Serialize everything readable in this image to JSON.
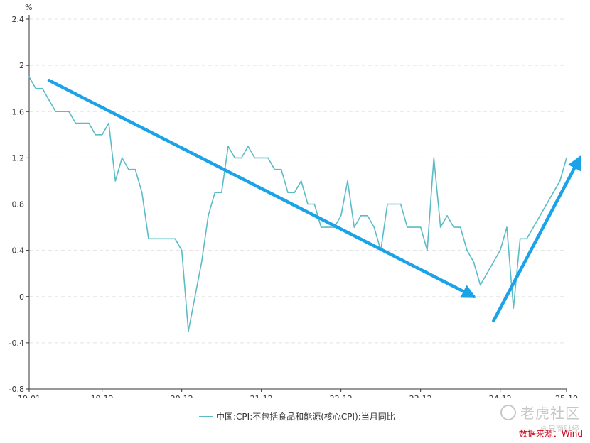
{
  "chart_data": {
    "type": "line",
    "unit": "%",
    "x_tick_labels": [
      "19-01",
      "19-12",
      "20-12",
      "21-12",
      "22-12",
      "23-12",
      "24-12",
      "25-10"
    ],
    "y_ticks": [
      2.4,
      2,
      1.6,
      1.2,
      0.8,
      0.4,
      0,
      -0.4,
      -0.8
    ],
    "ylim": [
      -0.8,
      2.4
    ],
    "x_range": [
      "2019-01",
      "2025-10"
    ],
    "grid": "horizontal dashed",
    "legend_position": "bottom",
    "series": [
      {
        "name": "中国:CPI:不包括食品和能源(核心CPI):当月同比",
        "color": "#5bbcc6",
        "x": [
          "2019-01",
          "2019-02",
          "2019-03",
          "2019-04",
          "2019-05",
          "2019-06",
          "2019-07",
          "2019-08",
          "2019-09",
          "2019-10",
          "2019-11",
          "2019-12",
          "2020-01",
          "2020-02",
          "2020-03",
          "2020-04",
          "2020-05",
          "2020-06",
          "2020-07",
          "2020-08",
          "2020-09",
          "2020-10",
          "2020-11",
          "2020-12",
          "2021-01",
          "2021-02",
          "2021-03",
          "2021-04",
          "2021-05",
          "2021-06",
          "2021-07",
          "2021-08",
          "2021-09",
          "2021-10",
          "2021-11",
          "2021-12",
          "2022-01",
          "2022-02",
          "2022-03",
          "2022-04",
          "2022-05",
          "2022-06",
          "2022-07",
          "2022-08",
          "2022-09",
          "2022-10",
          "2022-11",
          "2022-12",
          "2023-01",
          "2023-02",
          "2023-03",
          "2023-04",
          "2023-05",
          "2023-06",
          "2023-07",
          "2023-08",
          "2023-09",
          "2023-10",
          "2023-11",
          "2023-12",
          "2024-01",
          "2024-02",
          "2024-03",
          "2024-04",
          "2024-05",
          "2024-06",
          "2024-07",
          "2024-08",
          "2024-09",
          "2024-10",
          "2024-11",
          "2024-12",
          "2025-01",
          "2025-02",
          "2025-03",
          "2025-04",
          "2025-05",
          "2025-06",
          "2025-07",
          "2025-08",
          "2025-09",
          "2025-10"
        ],
        "values": [
          1.9,
          1.8,
          1.8,
          1.7,
          1.6,
          1.6,
          1.6,
          1.5,
          1.5,
          1.5,
          1.4,
          1.4,
          1.5,
          1.0,
          1.2,
          1.1,
          1.1,
          0.9,
          0.5,
          0.5,
          0.5,
          0.5,
          0.5,
          0.4,
          -0.3,
          0.0,
          0.3,
          0.7,
          0.9,
          0.9,
          1.3,
          1.2,
          1.2,
          1.3,
          1.2,
          1.2,
          1.2,
          1.1,
          1.1,
          0.9,
          0.9,
          1.0,
          0.8,
          0.8,
          0.6,
          0.6,
          0.6,
          0.7,
          1.0,
          0.6,
          0.7,
          0.7,
          0.6,
          0.4,
          0.8,
          0.8,
          0.8,
          0.6,
          0.6,
          0.6,
          0.4,
          1.2,
          0.6,
          0.7,
          0.6,
          0.6,
          0.4,
          0.3,
          0.1,
          0.2,
          0.3,
          0.4,
          0.6,
          -0.1,
          0.5,
          0.5,
          0.6,
          0.7,
          0.8,
          0.9,
          1.0,
          1.2
        ]
      }
    ],
    "annotations": [
      {
        "type": "arrow",
        "color": "#1aa3e8",
        "from": [
          "2019-04",
          1.87
        ],
        "to": [
          "2024-08",
          0.0
        ]
      },
      {
        "type": "arrow",
        "color": "#1aa3e8",
        "from": [
          "2024-11",
          -0.21
        ],
        "to": [
          "2025-12",
          1.2
        ]
      }
    ]
  },
  "legend": {
    "label": "中国:CPI:不包括食品和能源(核心CPI):当月同比"
  },
  "source_note": "数据来源：Wind",
  "watermark": {
    "text": "老虎社区",
    "subtext": "@界面财经"
  }
}
